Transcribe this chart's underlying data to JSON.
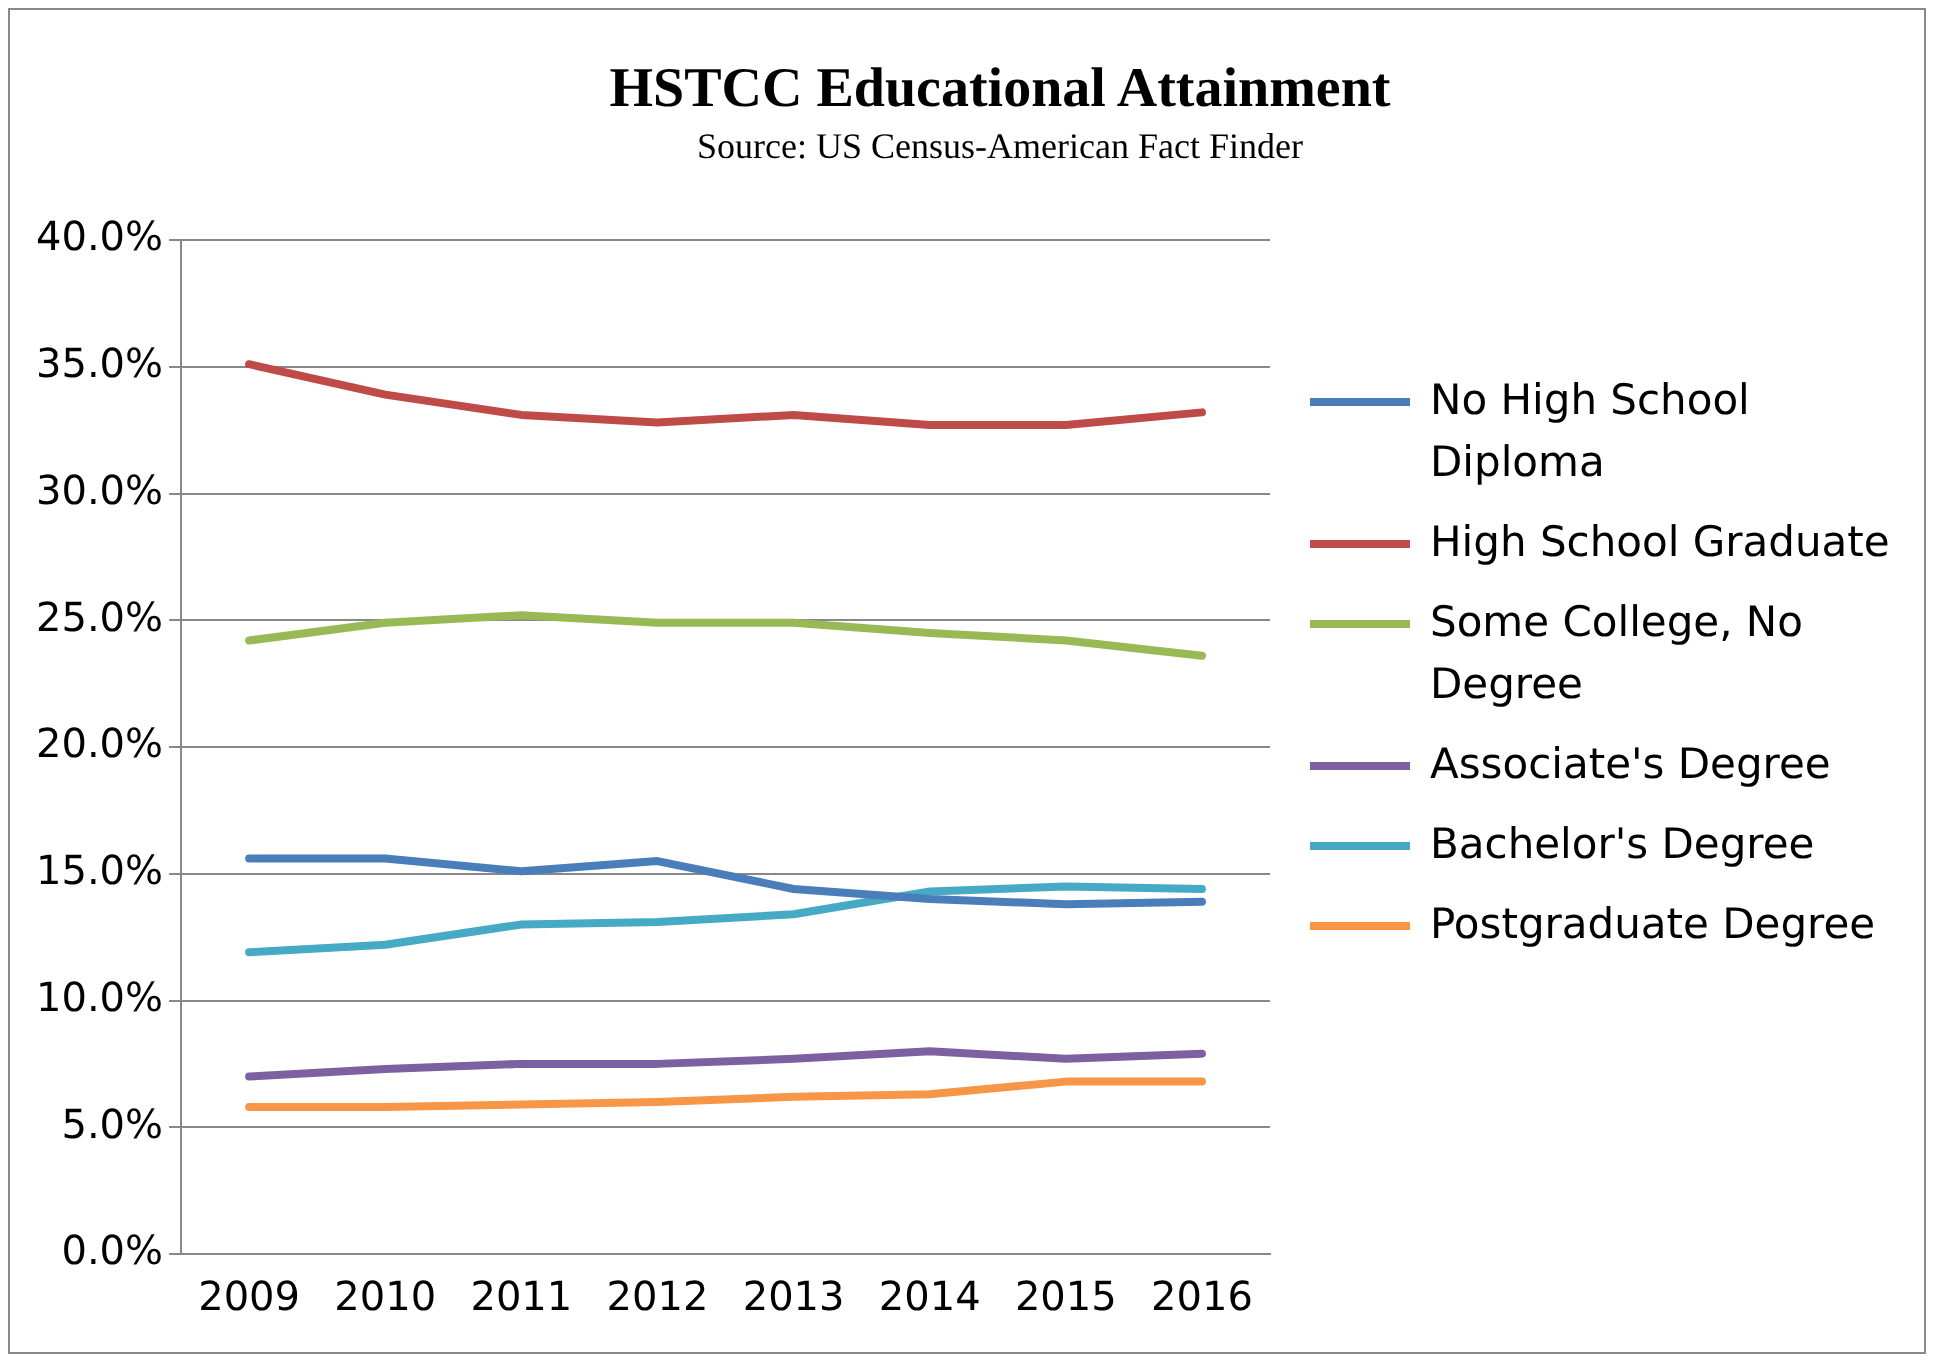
{
  "chart_data": {
    "type": "line",
    "title": "HSTCC Educational Attainment",
    "subtitle": "Source: US Census-American Fact Finder",
    "categories": [
      "2009",
      "2010",
      "2011",
      "2012",
      "2013",
      "2014",
      "2015",
      "2016"
    ],
    "series": [
      {
        "name": "No High School Diploma",
        "color": "#4a7ebb",
        "values": [
          15.6,
          15.6,
          15.1,
          15.5,
          14.4,
          14.0,
          13.8,
          13.9
        ]
      },
      {
        "name": "High School Graduate",
        "color": "#be4b48",
        "values": [
          35.1,
          33.9,
          33.1,
          32.8,
          33.1,
          32.7,
          32.7,
          33.2
        ]
      },
      {
        "name": "Some College, No Degree",
        "color": "#98b954",
        "values": [
          24.2,
          24.9,
          25.2,
          24.9,
          24.9,
          24.5,
          24.2,
          23.6
        ]
      },
      {
        "name": "Associate's Degree",
        "color": "#7d60a0",
        "values": [
          7.0,
          7.3,
          7.5,
          7.5,
          7.7,
          8.0,
          7.7,
          7.9
        ]
      },
      {
        "name": "Bachelor's Degree",
        "color": "#46aac5",
        "values": [
          11.9,
          12.2,
          13.0,
          13.1,
          13.4,
          14.3,
          14.5,
          14.4
        ]
      },
      {
        "name": "Postgraduate Degree",
        "color": "#f79646",
        "values": [
          5.8,
          5.8,
          5.9,
          6.0,
          6.2,
          6.3,
          6.8,
          6.8
        ]
      }
    ],
    "ylim": [
      0,
      40
    ],
    "yticks": [
      {
        "value": 0,
        "label": "0.0%"
      },
      {
        "value": 5,
        "label": "5.0%"
      },
      {
        "value": 10,
        "label": "10.0%"
      },
      {
        "value": 15,
        "label": "15.0%"
      },
      {
        "value": 20,
        "label": "20.0%"
      },
      {
        "value": 25,
        "label": "25.0%"
      },
      {
        "value": 30,
        "label": "30.0%"
      },
      {
        "value": 35,
        "label": "35.0%"
      },
      {
        "value": 40,
        "label": "40.0%"
      }
    ],
    "grid": "y",
    "legend": "right",
    "marker": "none",
    "line_style": "solid"
  }
}
